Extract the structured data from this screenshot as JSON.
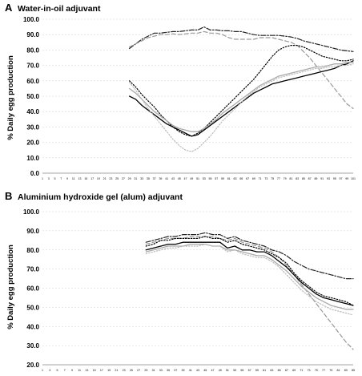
{
  "chart_data": [
    {
      "type": "line",
      "letter": "A",
      "title": "Water-in-oil adjuvant",
      "ylabel": "% Daily egg production",
      "xlabel": "",
      "ylim": [
        0,
        100
      ],
      "ystep": 10,
      "xlim": [
        1,
        101
      ],
      "grid": true,
      "series": [
        {
          "style": "dashdot",
          "color": "#222222",
          "x": [
            29,
            31,
            33,
            35,
            37,
            39,
            41,
            43,
            45,
            47,
            49,
            51,
            53,
            55,
            57,
            59,
            61,
            63,
            65,
            67,
            69,
            71,
            73,
            75,
            77,
            79,
            81,
            83,
            85,
            87,
            89,
            91,
            93,
            95,
            97,
            99,
            101
          ],
          "y": [
            81,
            84,
            87,
            89,
            91,
            91,
            91.5,
            92,
            92,
            92.5,
            93,
            93,
            95,
            93,
            93,
            92.5,
            92.5,
            92,
            92,
            91,
            90,
            89.5,
            89.5,
            89.5,
            89.5,
            89,
            88.5,
            87.5,
            86,
            85,
            84,
            83,
            82,
            81,
            80,
            79.5,
            79
          ]
        },
        {
          "style": "dash",
          "color": "#999999",
          "x": [
            29,
            31,
            33,
            35,
            37,
            39,
            41,
            43,
            45,
            47,
            49,
            51,
            53,
            55,
            57,
            59,
            61,
            63,
            65,
            67,
            69,
            71,
            73,
            75,
            77,
            79,
            81,
            83,
            85,
            87,
            89,
            91,
            93,
            95,
            97,
            99,
            101
          ],
          "y": [
            82,
            84,
            86,
            88,
            89,
            90,
            90,
            90.5,
            90,
            90.5,
            91,
            91,
            92,
            91,
            91,
            90,
            88,
            87,
            87,
            87,
            87,
            88,
            88,
            88,
            87,
            86,
            85,
            83,
            79,
            75,
            70,
            65,
            60,
            55,
            50,
            45,
            42
          ]
        },
        {
          "style": "dot",
          "color": "#000000",
          "x": [
            29,
            31,
            33,
            35,
            37,
            39,
            41,
            43,
            45,
            47,
            49,
            51,
            53,
            55,
            57,
            59,
            61,
            63,
            65,
            67,
            69,
            71,
            73,
            75,
            77,
            79,
            81,
            83,
            85,
            87,
            89,
            91,
            93,
            95,
            97,
            99,
            101
          ],
          "y": [
            60,
            56,
            51,
            47,
            43,
            38,
            34,
            30,
            27,
            25,
            24,
            26,
            29,
            33,
            37,
            41,
            45,
            49,
            53,
            57,
            61,
            66,
            71,
            76,
            80,
            82,
            83,
            83,
            82,
            80,
            78,
            76,
            75,
            74,
            73,
            73,
            74
          ]
        },
        {
          "style": "solid",
          "color": "#000000",
          "x": [
            29,
            31,
            33,
            35,
            37,
            39,
            41,
            43,
            45,
            47,
            49,
            51,
            53,
            55,
            57,
            59,
            61,
            63,
            65,
            67,
            69,
            71,
            73,
            75,
            77,
            79,
            81,
            83,
            85,
            87,
            89,
            91,
            93,
            95,
            97,
            99,
            101
          ],
          "y": [
            50,
            48,
            44,
            41,
            38,
            35,
            32,
            30,
            28,
            26,
            24,
            25,
            28,
            31,
            34,
            37,
            40,
            43,
            46,
            49,
            52,
            54,
            56,
            58,
            59,
            60,
            61,
            62,
            63,
            64,
            65,
            66,
            67,
            68,
            70,
            71,
            73
          ]
        },
        {
          "style": "solid",
          "color": "#aaaaaa",
          "x": [
            29,
            31,
            33,
            35,
            37,
            39,
            41,
            43,
            45,
            47,
            49,
            51,
            53,
            55,
            57,
            59,
            61,
            63,
            65,
            67,
            69,
            71,
            73,
            75,
            77,
            79,
            81,
            83,
            85,
            87,
            89,
            91,
            93,
            95,
            97,
            99,
            101
          ],
          "y": [
            55,
            52,
            48,
            44,
            40,
            37,
            34,
            31,
            29,
            28,
            27,
            27,
            29,
            32,
            35,
            39,
            42,
            45,
            48,
            51,
            54,
            57,
            59,
            61,
            63,
            64,
            65,
            66,
            67,
            68,
            69,
            69,
            70,
            71,
            71,
            72,
            72
          ]
        },
        {
          "style": "dot",
          "color": "#bbbbbb",
          "x": [
            29,
            31,
            33,
            35,
            37,
            39,
            41,
            43,
            45,
            47,
            49,
            51,
            53,
            55,
            57,
            59,
            61,
            63,
            65,
            67,
            69,
            71,
            73,
            75,
            77,
            79,
            81,
            83,
            85,
            87,
            89,
            91,
            93,
            95,
            97,
            99,
            101
          ],
          "y": [
            59,
            54,
            48,
            42,
            37,
            32,
            27,
            22,
            18,
            15,
            14,
            16,
            20,
            24,
            29,
            34,
            38,
            42,
            46,
            50,
            53,
            56,
            58,
            60,
            62,
            63,
            64,
            65,
            66,
            67,
            68,
            68,
            69,
            69,
            70,
            70,
            71
          ]
        }
      ]
    },
    {
      "type": "line",
      "letter": "B",
      "title": "Aluminium hydroxide gel (alum) adjuvant",
      "ylabel": "% Daily egg production",
      "xlabel": "",
      "ylim": [
        20,
        100
      ],
      "ystep": 10,
      "xlim": [
        1,
        85
      ],
      "grid": true,
      "series": [
        {
          "style": "dashdot",
          "color": "#222222",
          "x": [
            29,
            31,
            33,
            35,
            37,
            39,
            41,
            43,
            45,
            47,
            49,
            51,
            53,
            55,
            57,
            59,
            61,
            63,
            65,
            67,
            69,
            71,
            73,
            75,
            77,
            79,
            81,
            83,
            85
          ],
          "y": [
            84,
            85,
            86,
            87,
            87,
            88,
            88,
            88,
            89,
            88,
            88,
            86,
            87,
            85,
            84,
            83,
            82,
            80,
            79,
            77,
            74,
            72,
            70,
            69,
            68,
            67,
            66,
            65,
            65
          ]
        },
        {
          "style": "dash",
          "color": "#999999",
          "x": [
            29,
            31,
            33,
            35,
            37,
            39,
            41,
            43,
            45,
            47,
            49,
            51,
            53,
            55,
            57,
            59,
            61,
            63,
            65,
            67,
            69,
            71,
            73,
            75,
            77,
            79,
            81,
            83,
            85
          ],
          "y": [
            83,
            84,
            85,
            86,
            86,
            86,
            87,
            87,
            87,
            87,
            86,
            85,
            86,
            84,
            83,
            82,
            81,
            79,
            76,
            72,
            67,
            62,
            57,
            52,
            47,
            42,
            37,
            32,
            28
          ]
        },
        {
          "style": "dot",
          "color": "#000000",
          "x": [
            29,
            31,
            33,
            35,
            37,
            39,
            41,
            43,
            45,
            47,
            49,
            51,
            53,
            55,
            57,
            59,
            61,
            63,
            65,
            67,
            69,
            71,
            73,
            75,
            77,
            79,
            81,
            83,
            85
          ],
          "y": [
            82,
            83,
            85,
            85,
            86,
            86,
            86,
            86,
            87,
            86,
            86,
            84,
            85,
            83,
            82,
            81,
            80,
            78,
            76,
            73,
            68,
            64,
            61,
            58,
            56,
            55,
            54,
            53,
            51
          ]
        },
        {
          "style": "solid",
          "color": "#000000",
          "x": [
            29,
            31,
            33,
            35,
            37,
            39,
            41,
            43,
            45,
            47,
            49,
            51,
            53,
            55,
            57,
            59,
            61,
            63,
            65,
            67,
            69,
            71,
            73,
            75,
            77,
            79,
            81,
            83,
            85
          ],
          "y": [
            80,
            81,
            82,
            83,
            83,
            84,
            84,
            84,
            84,
            84,
            84,
            81,
            82,
            80,
            80,
            79,
            79,
            77,
            74,
            71,
            67,
            63,
            60,
            57,
            55,
            54,
            53,
            52,
            51
          ]
        },
        {
          "style": "solid",
          "color": "#aaaaaa",
          "x": [
            29,
            31,
            33,
            35,
            37,
            39,
            41,
            43,
            45,
            47,
            49,
            51,
            53,
            55,
            57,
            59,
            61,
            63,
            65,
            67,
            69,
            71,
            73,
            75,
            77,
            79,
            81,
            83,
            85
          ],
          "y": [
            79,
            80,
            81,
            82,
            82,
            82,
            83,
            83,
            83,
            82,
            82,
            80,
            80,
            79,
            78,
            77,
            77,
            75,
            72,
            69,
            65,
            61,
            58,
            55,
            53,
            51,
            50,
            49,
            49
          ]
        },
        {
          "style": "dot",
          "color": "#bbbbbb",
          "x": [
            29,
            31,
            33,
            35,
            37,
            39,
            41,
            43,
            45,
            47,
            49,
            51,
            53,
            55,
            57,
            59,
            61,
            63,
            65,
            67,
            69,
            71,
            73,
            75,
            77,
            79,
            81,
            83,
            85
          ],
          "y": [
            78,
            79,
            80,
            81,
            81,
            82,
            82,
            82,
            83,
            82,
            82,
            79,
            80,
            78,
            77,
            76,
            76,
            74,
            71,
            67,
            63,
            59,
            56,
            53,
            51,
            49,
            48,
            47,
            46
          ]
        }
      ]
    }
  ]
}
